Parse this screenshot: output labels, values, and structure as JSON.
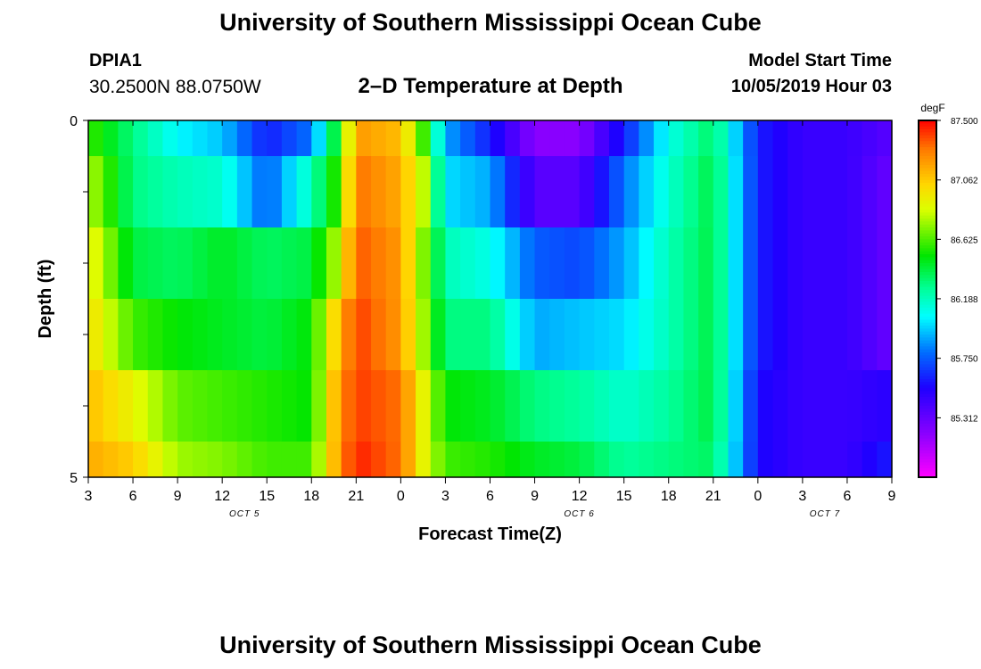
{
  "header": {
    "title": "University of Southern Mississippi Ocean Cube",
    "station_id": "DPIA1",
    "coordinates": "30.2500N 88.0750W",
    "subtitle": "2–D Temperature at Depth",
    "model_start_label": "Model Start Time",
    "model_start_value": "10/05/2019 Hour 03"
  },
  "footer": {
    "title": "University of Southern Mississippi Ocean Cube"
  },
  "chart_data": {
    "type": "heatmap",
    "xlabel": "Forecast Time(Z)",
    "ylabel": "Depth (ft)",
    "x_tick_labels": [
      "3",
      "6",
      "9",
      "12",
      "15",
      "18",
      "21",
      "0",
      "3",
      "6",
      "9",
      "12",
      "15",
      "18",
      "21",
      "0",
      "3",
      "6",
      "9"
    ],
    "date_labels": [
      {
        "label": "OCT 5",
        "tick_index": 3.5
      },
      {
        "label": "OCT 6",
        "tick_index": 11
      },
      {
        "label": "OCT 7",
        "tick_index": 16.5
      }
    ],
    "y_tick_labels": [
      "0",
      "5"
    ],
    "ylim": [
      0,
      5
    ],
    "y_minor_ticks": 4,
    "colorbar": {
      "unit": "degF",
      "tick_labels": [
        "87.500",
        "87.062",
        "86.625",
        "86.188",
        "85.750",
        "85.312"
      ],
      "tick_values": [
        87.5,
        87.062,
        86.625,
        86.188,
        85.75,
        85.312
      ],
      "vmin": 84.875,
      "vmax": 87.5
    },
    "anchors": [
      {
        "t": 0,
        "v": [
          86.6,
          86.8,
          86.95,
          87.0,
          87.1,
          87.15
        ]
      },
      {
        "t": 1,
        "v": [
          86.3,
          86.3,
          86.4,
          86.6,
          86.9,
          87.05
        ]
      },
      {
        "t": 2,
        "v": [
          86.05,
          86.2,
          86.35,
          86.5,
          86.65,
          86.75
        ]
      },
      {
        "t": 3,
        "v": [
          85.95,
          86.15,
          86.45,
          86.45,
          86.6,
          86.7
        ]
      },
      {
        "t": 4,
        "v": [
          85.6,
          85.75,
          86.35,
          86.4,
          86.55,
          86.6
        ]
      },
      {
        "t": 5,
        "v": [
          85.8,
          86.2,
          86.4,
          86.5,
          86.5,
          86.6
        ]
      },
      {
        "t": 5.6,
        "v": [
          86.5,
          86.6,
          86.8,
          87.1,
          87.2,
          87.2
        ]
      },
      {
        "t": 6,
        "v": [
          87.2,
          87.3,
          87.35,
          87.4,
          87.4,
          87.45
        ]
      },
      {
        "t": 7,
        "v": [
          87.1,
          87.15,
          87.2,
          87.2,
          87.3,
          87.3
        ]
      },
      {
        "t": 7.5,
        "v": [
          86.6,
          86.8,
          86.7,
          86.75,
          86.9,
          86.9
        ]
      },
      {
        "t": 8,
        "v": [
          85.9,
          86.0,
          86.2,
          86.3,
          86.5,
          86.6
        ]
      },
      {
        "t": 9,
        "v": [
          85.6,
          85.9,
          86.1,
          86.3,
          86.45,
          86.55
        ]
      },
      {
        "t": 10,
        "v": [
          85.2,
          85.35,
          85.75,
          85.9,
          86.3,
          86.45
        ]
      },
      {
        "t": 11,
        "v": [
          85.2,
          85.35,
          85.7,
          85.95,
          86.25,
          86.4
        ]
      },
      {
        "t": 12,
        "v": [
          85.6,
          85.8,
          85.9,
          86.0,
          86.15,
          86.25
        ]
      },
      {
        "t": 13,
        "v": [
          86.1,
          86.15,
          86.2,
          86.2,
          86.25,
          86.3
        ]
      },
      {
        "t": 14,
        "v": [
          86.35,
          86.4,
          86.4,
          86.4,
          86.4,
          86.35
        ]
      },
      {
        "t": 15,
        "v": [
          85.6,
          85.6,
          85.6,
          85.6,
          85.55,
          85.55
        ]
      },
      {
        "t": 16,
        "v": [
          85.45,
          85.45,
          85.45,
          85.45,
          85.45,
          85.45
        ]
      },
      {
        "t": 17,
        "v": [
          85.45,
          85.45,
          85.45,
          85.45,
          85.45,
          85.45
        ]
      },
      {
        "t": 18,
        "v": [
          85.35,
          85.3,
          85.3,
          85.3,
          85.5,
          85.6
        ]
      }
    ],
    "grid": false
  },
  "colors": {
    "background": "#ffffff",
    "axis": "#000000"
  }
}
